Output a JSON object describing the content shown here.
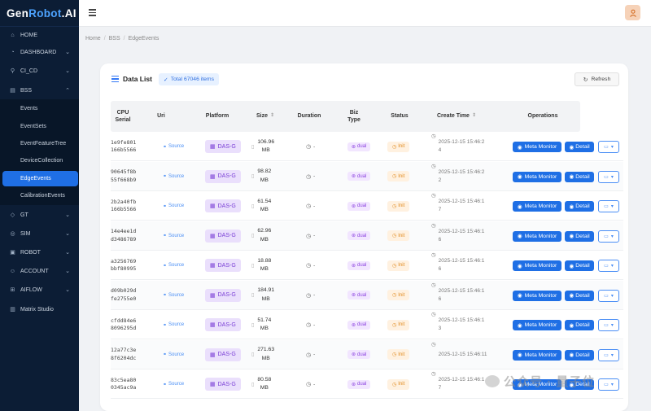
{
  "app": {
    "logo_prefix": "Gen",
    "logo_accent": "Robot",
    "logo_suffix": ".AI"
  },
  "sidebar": {
    "items": [
      {
        "label": "HOME",
        "icon": "home-icon",
        "chevron": ""
      },
      {
        "label": "DASHBOARD",
        "icon": "dashboard-icon",
        "chevron": "⌄"
      },
      {
        "label": "CI_CD",
        "icon": "ci-cd-icon",
        "chevron": "⌄"
      },
      {
        "label": "BSS",
        "icon": "bss-icon",
        "chevron": "⌃"
      },
      {
        "label": "GT",
        "icon": "tag-icon",
        "chevron": "⌄"
      },
      {
        "label": "SIM",
        "icon": "sim-icon",
        "chevron": "⌄"
      },
      {
        "label": "ROBOT",
        "icon": "robot-icon",
        "chevron": "⌄"
      },
      {
        "label": "ACCOUNT",
        "icon": "account-icon",
        "chevron": "⌄"
      },
      {
        "label": "AIFLOW",
        "icon": "flow-icon",
        "chevron": "⌄"
      },
      {
        "label": "Matrix Studio",
        "icon": "chart-icon",
        "chevron": ""
      }
    ],
    "bss_children": [
      "Events",
      "EventSets",
      "EventFeatureTree",
      "DeviceCollection",
      "EdgeEvents",
      "CalibrationEvents"
    ],
    "active": "EdgeEvents"
  },
  "breadcrumb": [
    "Home",
    "BSS",
    "EdgeEvents"
  ],
  "card": {
    "title": "Data List",
    "total": "Total 67046 items",
    "refresh": "Refresh"
  },
  "columns": [
    "CPU Serial",
    "Uri",
    "Platform",
    "Size",
    "Duration",
    "Biz Type",
    "Status",
    "Create Time",
    "Operations"
  ],
  "rows": [
    {
      "cpu": "1e9fe801\n166b5566",
      "uri": "Source",
      "platform": "DAS-G",
      "size": "106.96\nMB",
      "duration": "-",
      "biz": "dual",
      "status": "Init",
      "time": "2025-12-15 15:46:2\n4"
    },
    {
      "cpu": "90645f8b\n55f668b9",
      "uri": "Source",
      "platform": "DAS-G",
      "size": "98.82\nMB",
      "duration": "-",
      "biz": "dual",
      "status": "Init",
      "time": "2025-12-15 15:46:2\n2"
    },
    {
      "cpu": "2b2a40fb\n166b5566",
      "uri": "Source",
      "platform": "DAS-G",
      "size": "61.54\nMB",
      "duration": "-",
      "biz": "dual",
      "status": "Init",
      "time": "2025-12-15 15:46:1\n7"
    },
    {
      "cpu": "14e4ee1d\nd3486789",
      "uri": "Source",
      "platform": "DAS-G",
      "size": "62.96\nMB",
      "duration": "-",
      "biz": "dual",
      "status": "Init",
      "time": "2025-12-15 15:46:1\n6"
    },
    {
      "cpu": "a3256769\nbbf80995",
      "uri": "Source",
      "platform": "DAS-G",
      "size": "18.88\nMB",
      "duration": "-",
      "biz": "dual",
      "status": "Init",
      "time": "2025-12-15 15:46:1\n6"
    },
    {
      "cpu": "d09b029d\nfe2755e0",
      "uri": "Source",
      "platform": "DAS-G",
      "size": "184.91\nMB",
      "duration": "-",
      "biz": "dual",
      "status": "Init",
      "time": "2025-12-15 15:46:1\n6"
    },
    {
      "cpu": "cfdd84e6\n8096295d",
      "uri": "Source",
      "platform": "DAS-G",
      "size": "51.74\nMB",
      "duration": "-",
      "biz": "dual",
      "status": "Init",
      "time": "2025-12-15 15:46:1\n3"
    },
    {
      "cpu": "12a77c3e\n8f6204dc",
      "uri": "Source",
      "platform": "DAS-G",
      "size": "271.63\nMB",
      "duration": "-",
      "biz": "dual",
      "status": "Init",
      "time": "2025-12-15 15:46:11"
    },
    {
      "cpu": "83c5ea80\n0345ac9a",
      "uri": "Source",
      "platform": "DAS-G",
      "size": "80.58\nMB",
      "duration": "-",
      "biz": "dual",
      "status": "Init",
      "time": "2025-12-15 15:46:1\n7"
    }
  ],
  "actions": {
    "meta": "Meta Monitor",
    "detail": "Detail",
    "more": "▾"
  },
  "watermark": "公众号 · 量子位",
  "colors": {
    "sidebar_bg": "#0c1d35",
    "accent": "#1f6fe5",
    "platform_tag": "#eadffc",
    "status_init": "#e08a1e"
  }
}
